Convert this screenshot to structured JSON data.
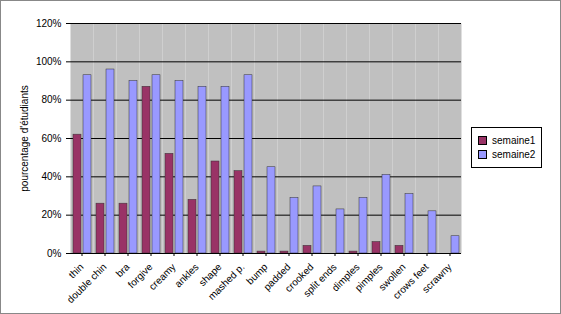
{
  "chart_data": {
    "type": "bar",
    "y_label": "pourcentage d'étudiants",
    "categories": [
      "thin",
      "double chin",
      "bra",
      "forgive",
      "creamy",
      "ankles",
      "shape",
      "mashed p.",
      "bump",
      "padded",
      "crooked",
      "split ends",
      "dimples",
      "pimples",
      "swollen",
      "crows feet",
      "scrawny"
    ],
    "series": [
      {
        "name": "semaine1",
        "color": "#993366",
        "values": [
          62,
          26,
          26,
          87,
          52,
          28,
          48,
          43,
          1,
          1,
          4,
          0,
          1,
          6,
          4,
          0,
          0
        ]
      },
      {
        "name": "semaine2",
        "color": "#9999ff",
        "values": [
          93,
          96,
          90,
          93,
          90,
          87,
          87,
          93,
          45,
          29,
          35,
          23,
          29,
          41,
          31,
          22,
          9
        ]
      }
    ],
    "ylim": [
      0,
      120
    ],
    "yticks": [
      {
        "value": 0,
        "label": "0%"
      },
      {
        "value": 20,
        "label": "20%"
      },
      {
        "value": 40,
        "label": "40%"
      },
      {
        "value": 60,
        "label": "60%"
      },
      {
        "value": 80,
        "label": "80%"
      },
      {
        "value": 100,
        "label": "100%"
      },
      {
        "value": 120,
        "label": "120%"
      }
    ],
    "grid": true,
    "legend": "right"
  }
}
